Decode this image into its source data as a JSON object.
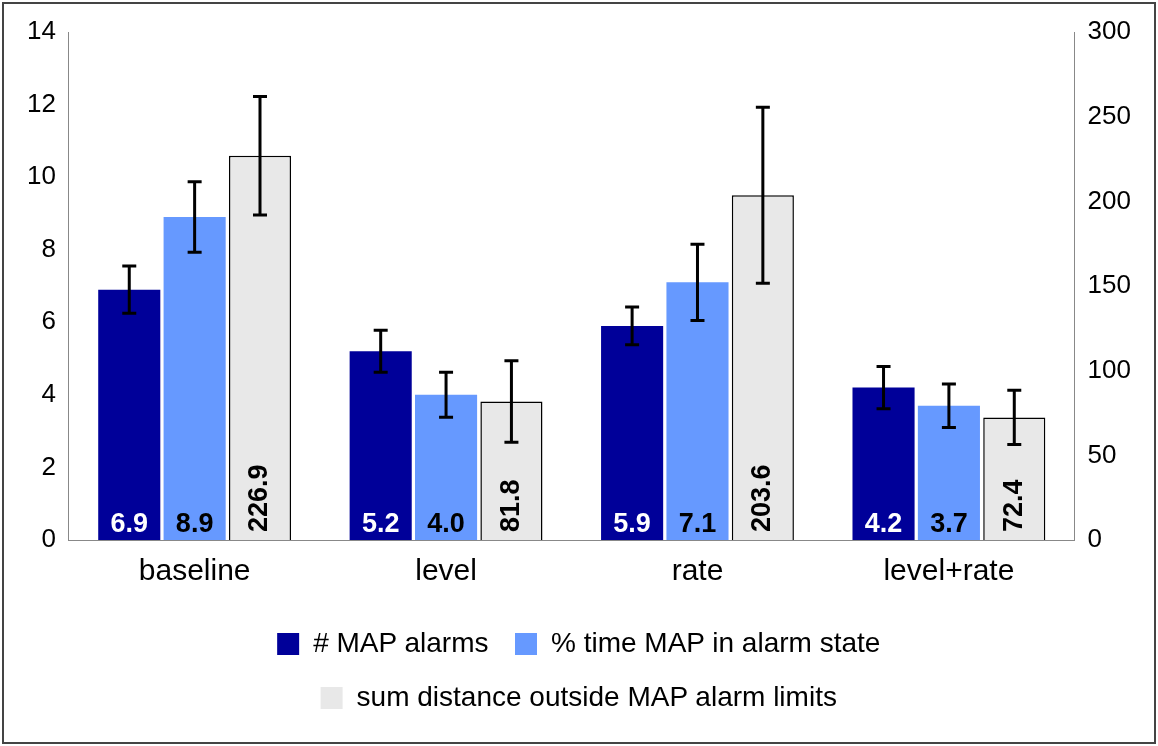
{
  "chart_data": {
    "type": "bar",
    "categories": [
      "baseline",
      "level",
      "rate",
      "level+rate"
    ],
    "series": [
      {
        "name": "# MAP alarms",
        "color": "#000099",
        "values": [
          6.9,
          5.2,
          5.9,
          4.2
        ],
        "value_labels": [
          "6.9",
          "5.2",
          "5.9",
          "4.2"
        ],
        "errors": [
          0.65,
          0.58,
          0.52,
          0.58
        ]
      },
      {
        "name": "% time MAP in alarm state",
        "color": "#6699ff",
        "values": [
          8.9,
          4.0,
          7.1,
          3.7
        ],
        "value_labels": [
          "8.9",
          "4.0",
          "7.1",
          "3.7"
        ],
        "errors": [
          0.97,
          0.62,
          1.05,
          0.6
        ]
      },
      {
        "name": "sum distance outside MAP alarm limits",
        "color": "#e8e8e8",
        "values": [
          226.9,
          81.8,
          203.6,
          72.4
        ],
        "value_labels": [
          "226.9",
          "81.8",
          "203.6",
          "72.4"
        ],
        "errors": [
          35,
          24,
          52,
          16
        ],
        "axis": "y2"
      }
    ],
    "ylim": [
      0,
      14
    ],
    "yticks": [
      0,
      2,
      4,
      6,
      8,
      10,
      12,
      14
    ],
    "y2lim": [
      0,
      300
    ],
    "y2ticks": [
      0,
      50,
      100,
      150,
      200,
      250,
      300
    ],
    "legend": "bottom",
    "grid": false
  }
}
